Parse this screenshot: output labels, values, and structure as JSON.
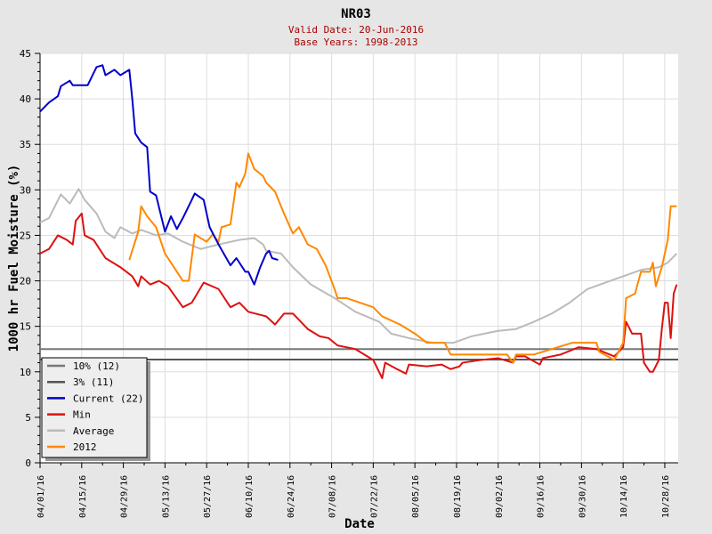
{
  "chart_data": {
    "type": "line",
    "title": "NR03",
    "subtitle": [
      "Valid Date: 20-Jun-2016",
      "Base Years: 1998-2013"
    ],
    "xlabel": "Date",
    "ylabel": "1000 hr Fuel Moisture (%)",
    "x_units": "days since 04/01/16",
    "xlim": [
      0,
      214.5
    ],
    "ylim": [
      0,
      45
    ],
    "yticks": [
      0,
      5,
      10,
      15,
      20,
      25,
      30,
      35,
      40,
      45
    ],
    "xticks": [
      {
        "d": 0,
        "label": "04/01/16"
      },
      {
        "d": 14,
        "label": "04/15/16"
      },
      {
        "d": 28,
        "label": "04/29/16"
      },
      {
        "d": 42,
        "label": "05/13/16"
      },
      {
        "d": 56,
        "label": "05/27/16"
      },
      {
        "d": 70,
        "label": "06/10/16"
      },
      {
        "d": 84,
        "label": "06/24/16"
      },
      {
        "d": 98,
        "label": "07/08/16"
      },
      {
        "d": 112,
        "label": "07/22/16"
      },
      {
        "d": 126,
        "label": "08/05/16"
      },
      {
        "d": 140,
        "label": "08/19/16"
      },
      {
        "d": 154,
        "label": "09/02/16"
      },
      {
        "d": 168,
        "label": "09/16/16"
      },
      {
        "d": 182,
        "label": "09/30/16"
      },
      {
        "d": 196,
        "label": "10/14/16"
      },
      {
        "d": 210,
        "label": "10/28/16"
      }
    ],
    "grid": true,
    "legend_position": "bottom-left",
    "hlines": [
      {
        "name": "10% (12)",
        "value": 12.5,
        "color": "#777777"
      },
      {
        "name": "3% (11)",
        "value": 11.35,
        "color": "#555555"
      }
    ],
    "series": [
      {
        "name": "Average",
        "color": "#bbbbbb",
        "points": [
          [
            0,
            26.4
          ],
          [
            3,
            26.9
          ],
          [
            7,
            29.5
          ],
          [
            10,
            28.5
          ],
          [
            13,
            30.1
          ],
          [
            15,
            28.9
          ],
          [
            19,
            27.4
          ],
          [
            22,
            25.4
          ],
          [
            25,
            24.7
          ],
          [
            27,
            25.9
          ],
          [
            31,
            25.2
          ],
          [
            34,
            25.6
          ],
          [
            39,
            25
          ],
          [
            43,
            25.2
          ],
          [
            48,
            24.3
          ],
          [
            54,
            23.5
          ],
          [
            60,
            24
          ],
          [
            67,
            24.5
          ],
          [
            72,
            24.7
          ],
          [
            75,
            24
          ],
          [
            76,
            23.3
          ],
          [
            81,
            23
          ],
          [
            85,
            21.5
          ],
          [
            91,
            19.6
          ],
          [
            99,
            18.1
          ],
          [
            106,
            16.6
          ],
          [
            114,
            15.5
          ],
          [
            118,
            14.2
          ],
          [
            124,
            13.7
          ],
          [
            132,
            13.2
          ],
          [
            139,
            13.2
          ],
          [
            145,
            13.9
          ],
          [
            154,
            14.5
          ],
          [
            160,
            14.7
          ],
          [
            166,
            15.5
          ],
          [
            172,
            16.4
          ],
          [
            178,
            17.6
          ],
          [
            184,
            19.1
          ],
          [
            190,
            19.8
          ],
          [
            196,
            20.5
          ],
          [
            202,
            21.2
          ],
          [
            208,
            21.5
          ],
          [
            211,
            22
          ],
          [
            214,
            23
          ]
        ]
      },
      {
        "name": "Min",
        "color": "#dd1111",
        "points": [
          [
            0,
            23
          ],
          [
            3,
            23.5
          ],
          [
            6,
            25
          ],
          [
            9,
            24.5
          ],
          [
            11,
            24
          ],
          [
            12,
            26.6
          ],
          [
            14,
            27.4
          ],
          [
            15,
            25
          ],
          [
            18,
            24.5
          ],
          [
            22,
            22.5
          ],
          [
            27,
            21.5
          ],
          [
            31,
            20.5
          ],
          [
            33,
            19.4
          ],
          [
            34,
            20.5
          ],
          [
            37,
            19.6
          ],
          [
            40,
            20
          ],
          [
            43,
            19.4
          ],
          [
            48,
            17.1
          ],
          [
            51,
            17.6
          ],
          [
            55,
            19.8
          ],
          [
            60,
            19.1
          ],
          [
            64,
            17.1
          ],
          [
            67,
            17.6
          ],
          [
            70,
            16.6
          ],
          [
            76,
            16.1
          ],
          [
            79,
            15.2
          ],
          [
            82,
            16.4
          ],
          [
            85,
            16.4
          ],
          [
            90,
            14.7
          ],
          [
            94,
            13.9
          ],
          [
            97,
            13.7
          ],
          [
            100,
            12.9
          ],
          [
            106,
            12.5
          ],
          [
            112,
            11.3
          ],
          [
            115,
            9.3
          ],
          [
            116,
            11
          ],
          [
            120,
            10.3
          ],
          [
            123,
            9.8
          ],
          [
            124,
            10.8
          ],
          [
            130,
            10.6
          ],
          [
            135,
            10.8
          ],
          [
            138,
            10.3
          ],
          [
            141,
            10.6
          ],
          [
            142,
            11
          ],
          [
            148,
            11.3
          ],
          [
            154,
            11.5
          ],
          [
            159,
            11
          ],
          [
            160,
            11.7
          ],
          [
            163,
            11.7
          ],
          [
            168,
            10.8
          ],
          [
            169,
            11.5
          ],
          [
            175,
            11.9
          ],
          [
            181,
            12.7
          ],
          [
            187,
            12.5
          ],
          [
            193,
            11.7
          ],
          [
            196,
            12.7
          ],
          [
            197,
            15.5
          ],
          [
            199,
            14.2
          ],
          [
            202,
            14.2
          ],
          [
            203,
            11
          ],
          [
            205,
            10
          ],
          [
            206,
            10
          ],
          [
            208,
            11.3
          ],
          [
            209,
            14.7
          ],
          [
            210,
            17.6
          ],
          [
            211,
            17.6
          ],
          [
            212,
            13.7
          ],
          [
            213,
            18.6
          ],
          [
            214,
            19.6
          ]
        ]
      },
      {
        "name": "2012",
        "color": "#ff8800",
        "points": [
          [
            30,
            22.3
          ],
          [
            33,
            25.4
          ],
          [
            34,
            28.2
          ],
          [
            36,
            27.1
          ],
          [
            39,
            25.9
          ],
          [
            42,
            23
          ],
          [
            45,
            21.5
          ],
          [
            48,
            20
          ],
          [
            50,
            20
          ],
          [
            52,
            25.1
          ],
          [
            56,
            24.3
          ],
          [
            58,
            25.1
          ],
          [
            60,
            24.3
          ],
          [
            61,
            25.9
          ],
          [
            64,
            26.2
          ],
          [
            66,
            30.8
          ],
          [
            67,
            30.3
          ],
          [
            69,
            31.8
          ],
          [
            70,
            34
          ],
          [
            72,
            32.3
          ],
          [
            75,
            31.5
          ],
          [
            76,
            30.8
          ],
          [
            79,
            29.8
          ],
          [
            82,
            27.4
          ],
          [
            85,
            25.2
          ],
          [
            87,
            25.9
          ],
          [
            90,
            24
          ],
          [
            93,
            23.5
          ],
          [
            96,
            21.7
          ],
          [
            99,
            19.1
          ],
          [
            100,
            18.1
          ],
          [
            103,
            18.1
          ],
          [
            112,
            17.1
          ],
          [
            115,
            16.1
          ],
          [
            121,
            15.2
          ],
          [
            126,
            14.2
          ],
          [
            130,
            13.2
          ],
          [
            136,
            13.2
          ],
          [
            138,
            11.9
          ],
          [
            157,
            11.9
          ],
          [
            159,
            11
          ],
          [
            160,
            11.9
          ],
          [
            166,
            11.9
          ],
          [
            169,
            12.2
          ],
          [
            179,
            13.2
          ],
          [
            187,
            13.2
          ],
          [
            188,
            12.2
          ],
          [
            193,
            11.3
          ],
          [
            196,
            13.2
          ],
          [
            197,
            18.1
          ],
          [
            200,
            18.6
          ],
          [
            202,
            21
          ],
          [
            205,
            21
          ],
          [
            206,
            22
          ],
          [
            207,
            19.4
          ],
          [
            209,
            21.5
          ],
          [
            211,
            24.5
          ],
          [
            212,
            28.2
          ],
          [
            214,
            28.2
          ]
        ]
      },
      {
        "name": "Current (22)",
        "color": "#0000cc",
        "points": [
          [
            0,
            38.6
          ],
          [
            3,
            39.6
          ],
          [
            6,
            40.3
          ],
          [
            7,
            41.4
          ],
          [
            10,
            42
          ],
          [
            11,
            41.5
          ],
          [
            16,
            41.5
          ],
          [
            19,
            43.5
          ],
          [
            21,
            43.7
          ],
          [
            22,
            42.6
          ],
          [
            25,
            43.2
          ],
          [
            27,
            42.6
          ],
          [
            30,
            43.2
          ],
          [
            31,
            40
          ],
          [
            32,
            36.2
          ],
          [
            34,
            35.2
          ],
          [
            36,
            34.7
          ],
          [
            37,
            29.8
          ],
          [
            39,
            29.4
          ],
          [
            42,
            25.4
          ],
          [
            44,
            27.1
          ],
          [
            46,
            25.7
          ],
          [
            48,
            26.9
          ],
          [
            51,
            28.9
          ],
          [
            52,
            29.6
          ],
          [
            55,
            28.9
          ],
          [
            57,
            25.9
          ],
          [
            60,
            24
          ],
          [
            64,
            21.7
          ],
          [
            66,
            22.5
          ],
          [
            69,
            21
          ],
          [
            70,
            21
          ],
          [
            72,
            19.6
          ],
          [
            74,
            21.5
          ],
          [
            76,
            23
          ],
          [
            77,
            23.3
          ],
          [
            78,
            22.5
          ],
          [
            80,
            22.3
          ]
        ]
      }
    ],
    "legend": [
      {
        "label": "10% (12)",
        "color": "#777777"
      },
      {
        "label": "3% (11)",
        "color": "#555555"
      },
      {
        "label": "Current (22)",
        "color": "#0000cc"
      },
      {
        "label": "Min",
        "color": "#dd1111"
      },
      {
        "label": "Average",
        "color": "#bbbbbb"
      },
      {
        "label": "2012",
        "color": "#ff8800"
      }
    ]
  }
}
